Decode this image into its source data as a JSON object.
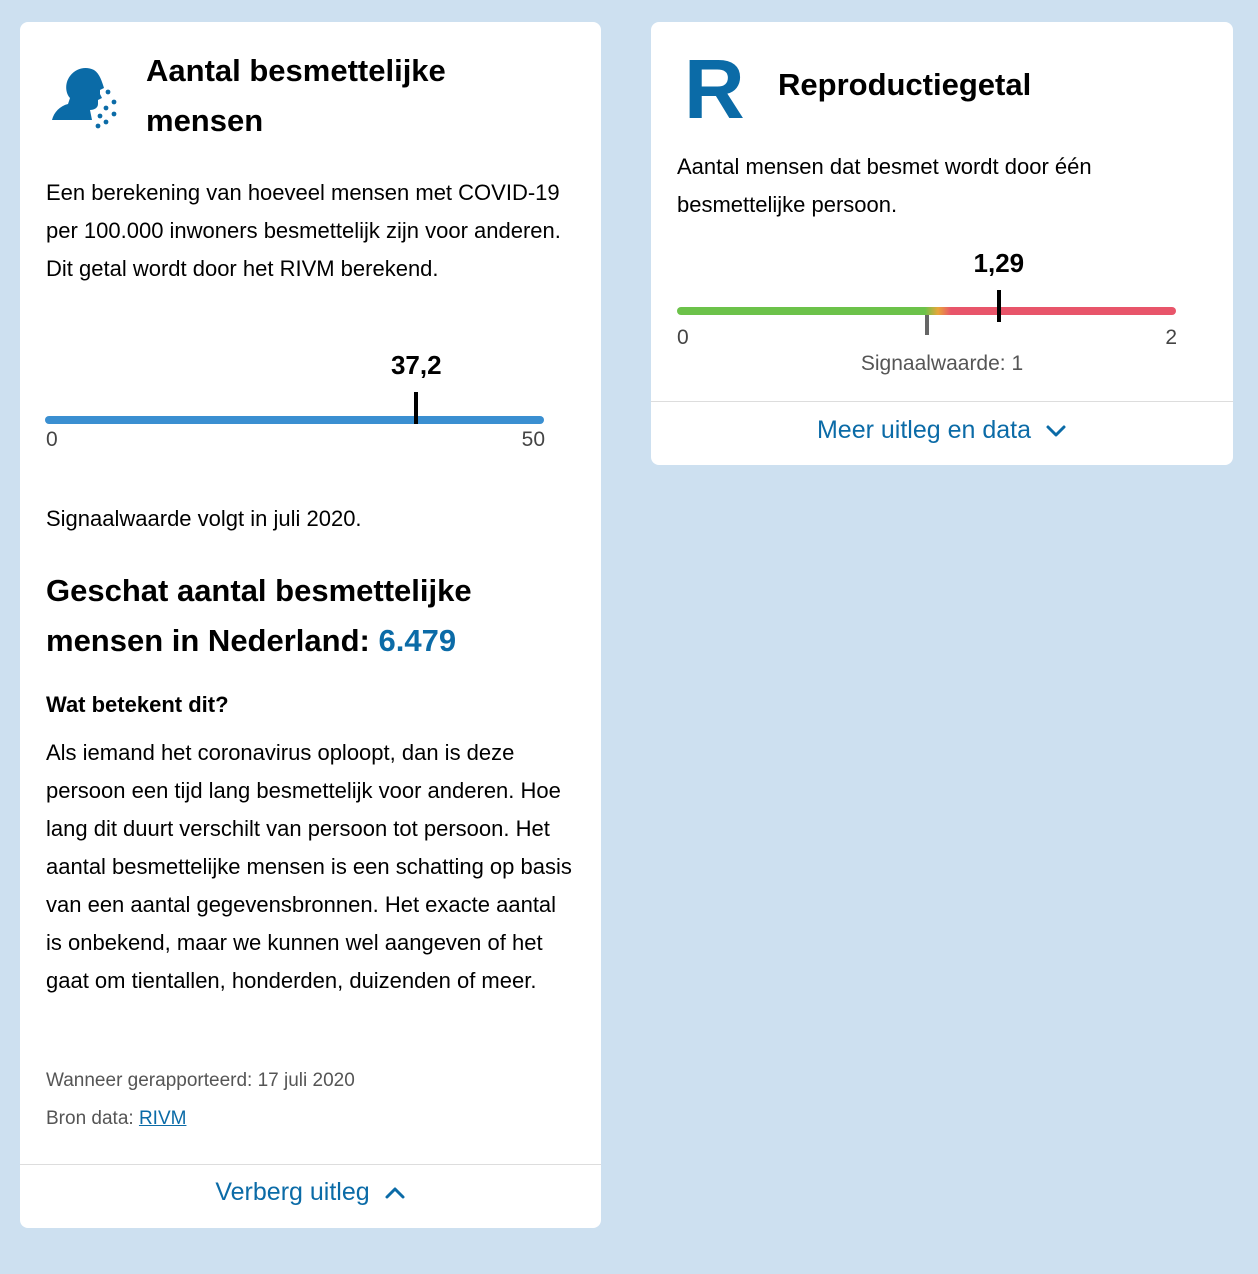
{
  "left_card": {
    "title": "Aantal besmettelijke mensen",
    "description": "Een berekening van hoeveel mensen met COVID-19 per 100.000 inwoners besmettelijk zijn voor anderen. Dit getal wordt door het RIVM berekend.",
    "gauge": {
      "value": 37.2,
      "value_label": "37,2",
      "min": 0,
      "max": 50,
      "min_label": "0",
      "max_label": "50",
      "bar_color": "#3a8fd1"
    },
    "signal_text": "Signaalwaarde volgt in juli 2020.",
    "estimate_label": "Geschat aantal besmettelijke mensen in Nederland:",
    "estimate_value": "6.479",
    "what_heading": "Wat betekent dit?",
    "what_body": "Als iemand het coronavirus oploopt, dan is deze persoon een tijd lang besmettelijk voor anderen. Hoe lang dit duurt verschilt van persoon tot persoon. Het aantal besmettelijke mensen is een schatting op basis van een aantal gegevensbronnen. Het exacte aantal is onbekend, maar we kunnen wel aangeven of het gaat om tientallen, honderden, duizenden of meer.",
    "reported": "Wanneer gerapporteerd: 17 juli 2020",
    "source_label": "Bron data:",
    "source_link": "RIVM",
    "toggle_label": "Verberg uitleg",
    "icon": "person-coughing-icon"
  },
  "right_card": {
    "letter": "R",
    "title": "Reproductiegetal",
    "description": "Aantal mensen dat besmet wordt door één besmettelijke persoon.",
    "gauge": {
      "value": 1.29,
      "value_label": "1,29",
      "min": 0,
      "max": 2,
      "min_label": "0",
      "max_label": "2",
      "signal": 1,
      "signal_label": "Signaalwaarde: 1",
      "good_color": "#6cc24a",
      "bad_color": "#e8556a"
    },
    "toggle_label": "Meer uitleg en data"
  },
  "colors": {
    "background": "#cde0f0",
    "accent": "#0b6ba7"
  }
}
